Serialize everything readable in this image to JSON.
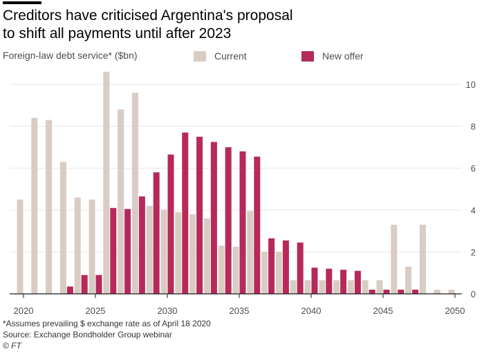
{
  "title_line1": "Creditors have criticised Argentina's proposal",
  "title_line2": "to shift all payments until after 2023",
  "ylabel": "Foreign-law debt service* ($bn)",
  "footnote": "*Assumes prevailing $ exchange rate as of April 18 2020",
  "source": "Source: Exchange Bondholder Group webinar",
  "credit": "© FT",
  "colors": {
    "current": "#d9ccc3",
    "new_offer": "#b7295a",
    "grid": "#e6e6e6",
    "axis": "#1a1a1a"
  },
  "chart_data": {
    "type": "bar",
    "ylabel": "Foreign-law debt service* ($bn)",
    "ylim": [
      0,
      10
    ],
    "yticks": [
      0,
      2,
      4,
      6,
      8,
      10
    ],
    "xlim": [
      2020,
      2050
    ],
    "xticks": [
      2020,
      2025,
      2030,
      2035,
      2040,
      2045,
      2050
    ],
    "grid": true,
    "legend_position": "top",
    "categories": [
      2020,
      2021,
      2022,
      2023,
      2024,
      2025,
      2026,
      2027,
      2028,
      2029,
      2030,
      2031,
      2032,
      2033,
      2034,
      2035,
      2036,
      2037,
      2038,
      2039,
      2040,
      2041,
      2042,
      2043,
      2044,
      2045,
      2046,
      2047,
      2048,
      2049,
      2050
    ],
    "series": [
      {
        "name": "Current",
        "values": [
          4.5,
          8.4,
          8.3,
          6.3,
          4.6,
          4.5,
          10.6,
          8.8,
          9.6,
          4.2,
          4.0,
          3.9,
          3.8,
          3.6,
          2.3,
          2.25,
          3.95,
          2.0,
          2.0,
          0.65,
          0.65,
          0.65,
          0.65,
          0.65,
          0.65,
          0.65,
          3.3,
          1.3,
          3.3,
          0.2,
          0.2
        ]
      },
      {
        "name": "New offer",
        "values": [
          0,
          0,
          0,
          0.35,
          0.9,
          0.9,
          4.1,
          4.05,
          4.65,
          5.8,
          6.65,
          7.7,
          7.5,
          7.25,
          7.0,
          6.8,
          6.55,
          2.65,
          2.55,
          2.45,
          1.25,
          1.2,
          1.15,
          1.1,
          0.2,
          0.2,
          0.2,
          0.2,
          0,
          0,
          0
        ]
      }
    ]
  }
}
